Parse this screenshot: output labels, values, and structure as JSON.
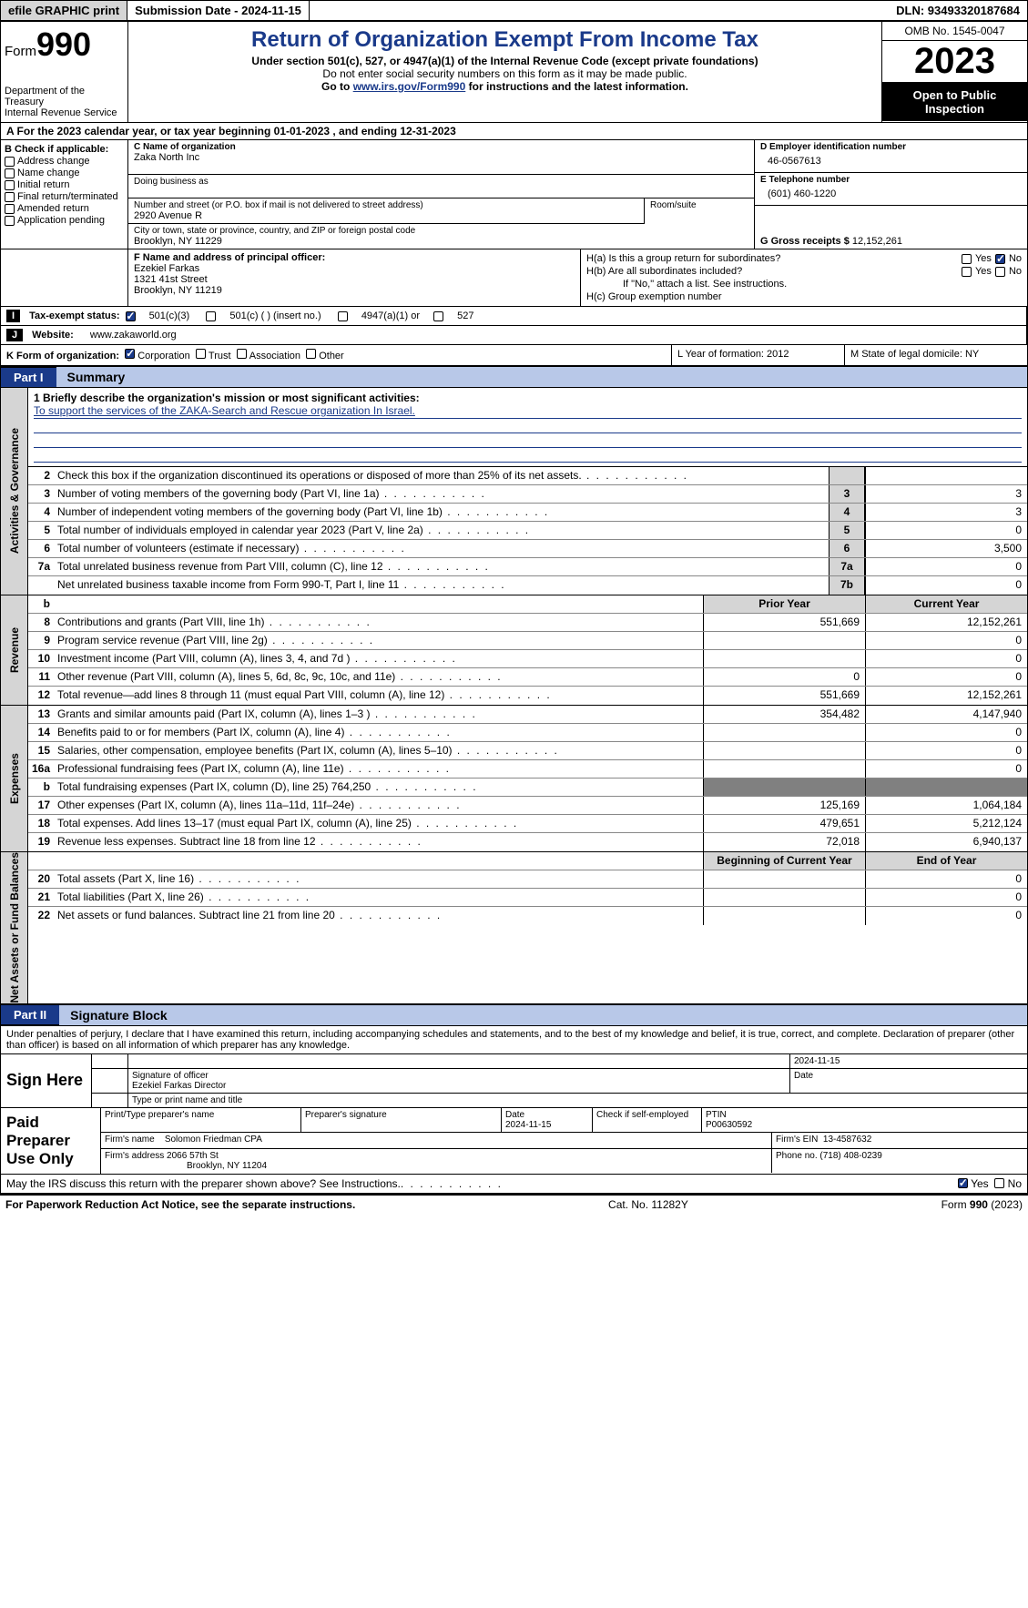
{
  "topbar": {
    "efile": "efile GRAPHIC print",
    "submission": "Submission Date - 2024-11-15",
    "dln": "DLN: 93493320187684"
  },
  "header": {
    "form_prefix": "Form",
    "form_number": "990",
    "dept1": "Department of the Treasury",
    "dept2": "Internal Revenue Service",
    "title": "Return of Organization Exempt From Income Tax",
    "sub1": "Under section 501(c), 527, or 4947(a)(1) of the Internal Revenue Code (except private foundations)",
    "sub2": "Do not enter social security numbers on this form as it may be made public.",
    "sub3_pre": "Go to ",
    "sub3_link": "www.irs.gov/Form990",
    "sub3_post": " for instructions and the latest information.",
    "omb": "OMB No. 1545-0047",
    "year": "2023",
    "open": "Open to Public Inspection"
  },
  "row_a": "A For the 2023 calendar year, or tax year beginning 01-01-2023   , and ending 12-31-2023",
  "section_b": {
    "title": "B Check if applicable:",
    "items": [
      "Address change",
      "Name change",
      "Initial return",
      "Final return/terminated",
      "Amended return",
      "Application pending"
    ]
  },
  "section_c": {
    "name_lbl": "C Name of organization",
    "name": "Zaka North Inc",
    "dba_lbl": "Doing business as",
    "street_lbl": "Number and street (or P.O. box if mail is not delivered to street address)",
    "street": "2920 Avenue R",
    "room_lbl": "Room/suite",
    "city_lbl": "City or town, state or province, country, and ZIP or foreign postal code",
    "city": "Brooklyn, NY  11229"
  },
  "section_d": {
    "ein_lbl": "D Employer identification number",
    "ein": "46-0567613",
    "tel_lbl": "E Telephone number",
    "tel": "(601) 460-1220",
    "gross_lbl": "G Gross receipts $",
    "gross": "12,152,261"
  },
  "section_f": {
    "lbl": "F  Name and address of principal officer:",
    "name": "Ezekiel Farkas",
    "addr1": "1321 41st Street",
    "addr2": "Brooklyn, NY  11219"
  },
  "section_h": {
    "ha": "H(a)  Is this a group return for subordinates?",
    "hb": "H(b)  Are all subordinates included?",
    "hb_note": "If \"No,\" attach a list. See instructions.",
    "hc": "H(c)  Group exemption number",
    "yes": "Yes",
    "no": "No"
  },
  "tax_exempt": {
    "label": "Tax-exempt status:",
    "a": "501(c)(3)",
    "b": "501(c) (  ) (insert no.)",
    "c": "4947(a)(1) or",
    "d": "527"
  },
  "website": {
    "label": "Website:",
    "value": "www.zakaworld.org"
  },
  "form_of_org": {
    "label": "K Form of organization:",
    "a": "Corporation",
    "b": "Trust",
    "c": "Association",
    "d": "Other"
  },
  "l": {
    "lbl": "L Year of formation: 2012"
  },
  "m": {
    "lbl": "M State of legal domicile: NY"
  },
  "parts": {
    "p1": "Part I",
    "p1t": "Summary",
    "p2": "Part II",
    "p2t": "Signature Block"
  },
  "vlabels": {
    "gov": "Activities & Governance",
    "rev": "Revenue",
    "exp": "Expenses",
    "net": "Net Assets or Fund Balances"
  },
  "mission": {
    "l1": "1   Briefly describe the organization's mission or most significant activities:",
    "text": "To support the services of the ZAKA-Search and Rescue organization In Israel."
  },
  "gov_rows": [
    {
      "n": "2",
      "d": "Check this box     if the organization discontinued its operations or disposed of more than 25% of its net assets."
    },
    {
      "n": "3",
      "d": "Number of voting members of the governing body (Part VI, line 1a)",
      "lno": "3",
      "v": "3"
    },
    {
      "n": "4",
      "d": "Number of independent voting members of the governing body (Part VI, line 1b)",
      "lno": "4",
      "v": "3"
    },
    {
      "n": "5",
      "d": "Total number of individuals employed in calendar year 2023 (Part V, line 2a)",
      "lno": "5",
      "v": "0"
    },
    {
      "n": "6",
      "d": "Total number of volunteers (estimate if necessary)",
      "lno": "6",
      "v": "3,500"
    },
    {
      "n": "7a",
      "d": "Total unrelated business revenue from Part VIII, column (C), line 12",
      "lno": "7a",
      "v": "0"
    },
    {
      "n": "",
      "d": "Net unrelated business taxable income from Form 990-T, Part I, line 11",
      "lno": "7b",
      "v": "0"
    }
  ],
  "col_hdrs": {
    "prior": "Prior Year",
    "current": "Current Year",
    "boy": "Beginning of Current Year",
    "eoy": "End of Year"
  },
  "rev_rows": [
    {
      "n": "8",
      "d": "Contributions and grants (Part VIII, line 1h)",
      "p": "551,669",
      "c": "12,152,261"
    },
    {
      "n": "9",
      "d": "Program service revenue (Part VIII, line 2g)",
      "p": "",
      "c": "0"
    },
    {
      "n": "10",
      "d": "Investment income (Part VIII, column (A), lines 3, 4, and 7d )",
      "p": "",
      "c": "0"
    },
    {
      "n": "11",
      "d": "Other revenue (Part VIII, column (A), lines 5, 6d, 8c, 9c, 10c, and 11e)",
      "p": "0",
      "c": "0"
    },
    {
      "n": "12",
      "d": "Total revenue—add lines 8 through 11 (must equal Part VIII, column (A), line 12)",
      "p": "551,669",
      "c": "12,152,261"
    }
  ],
  "exp_rows": [
    {
      "n": "13",
      "d": "Grants and similar amounts paid (Part IX, column (A), lines 1–3 )",
      "p": "354,482",
      "c": "4,147,940"
    },
    {
      "n": "14",
      "d": "Benefits paid to or for members (Part IX, column (A), line 4)",
      "p": "",
      "c": "0"
    },
    {
      "n": "15",
      "d": "Salaries, other compensation, employee benefits (Part IX, column (A), lines 5–10)",
      "p": "",
      "c": "0"
    },
    {
      "n": "16a",
      "d": "Professional fundraising fees (Part IX, column (A), line 11e)",
      "p": "",
      "c": "0"
    },
    {
      "n": "b",
      "d": "Total fundraising expenses (Part IX, column (D), line 25) 764,250",
      "grey": true
    },
    {
      "n": "17",
      "d": "Other expenses (Part IX, column (A), lines 11a–11d, 11f–24e)",
      "p": "125,169",
      "c": "1,064,184"
    },
    {
      "n": "18",
      "d": "Total expenses. Add lines 13–17 (must equal Part IX, column (A), line 25)",
      "p": "479,651",
      "c": "5,212,124"
    },
    {
      "n": "19",
      "d": "Revenue less expenses. Subtract line 18 from line 12",
      "p": "72,018",
      "c": "6,940,137"
    }
  ],
  "net_rows": [
    {
      "n": "20",
      "d": "Total assets (Part X, line 16)",
      "p": "",
      "c": "0"
    },
    {
      "n": "21",
      "d": "Total liabilities (Part X, line 26)",
      "p": "",
      "c": "0"
    },
    {
      "n": "22",
      "d": "Net assets or fund balances. Subtract line 21 from line 20",
      "p": "",
      "c": "0"
    }
  ],
  "penalty": "Under penalties of perjury, I declare that I have examined this return, including accompanying schedules and statements, and to the best of my knowledge and belief, it is true, correct, and complete. Declaration of preparer (other than officer) is based on all information of which preparer has any knowledge.",
  "sign": {
    "here": "Sign Here",
    "date": "2024-11-15",
    "sig_lbl": "Signature of officer",
    "name": "Ezekiel Farkas  Director",
    "type_lbl": "Type or print name and title",
    "date_lbl": "Date"
  },
  "prep": {
    "use": "Paid Preparer Use Only",
    "h1": "Print/Type preparer's name",
    "h2": "Preparer's signature",
    "h3": "Date",
    "h3v": "2024-11-15",
    "h4": "Check        if self-employed",
    "h5": "PTIN",
    "h5v": "P00630592",
    "firm_lbl": "Firm's name",
    "firm": "Solomon Friedman CPA",
    "ein_lbl": "Firm's EIN",
    "ein": "13-4587632",
    "addr_lbl": "Firm's address",
    "addr1": "2066 57th St",
    "addr2": "Brooklyn, NY  11204",
    "phone_lbl": "Phone no.",
    "phone": "(718) 408-0239"
  },
  "discuss": {
    "q": "May the IRS discuss this return with the preparer shown above? See Instructions.",
    "yes": "Yes",
    "no": "No"
  },
  "footer": {
    "left": "For Paperwork Reduction Act Notice, see the separate instructions.",
    "mid": "Cat. No. 11282Y",
    "right_pre": "Form ",
    "right_num": "990",
    "right_yr": " (2023)"
  }
}
